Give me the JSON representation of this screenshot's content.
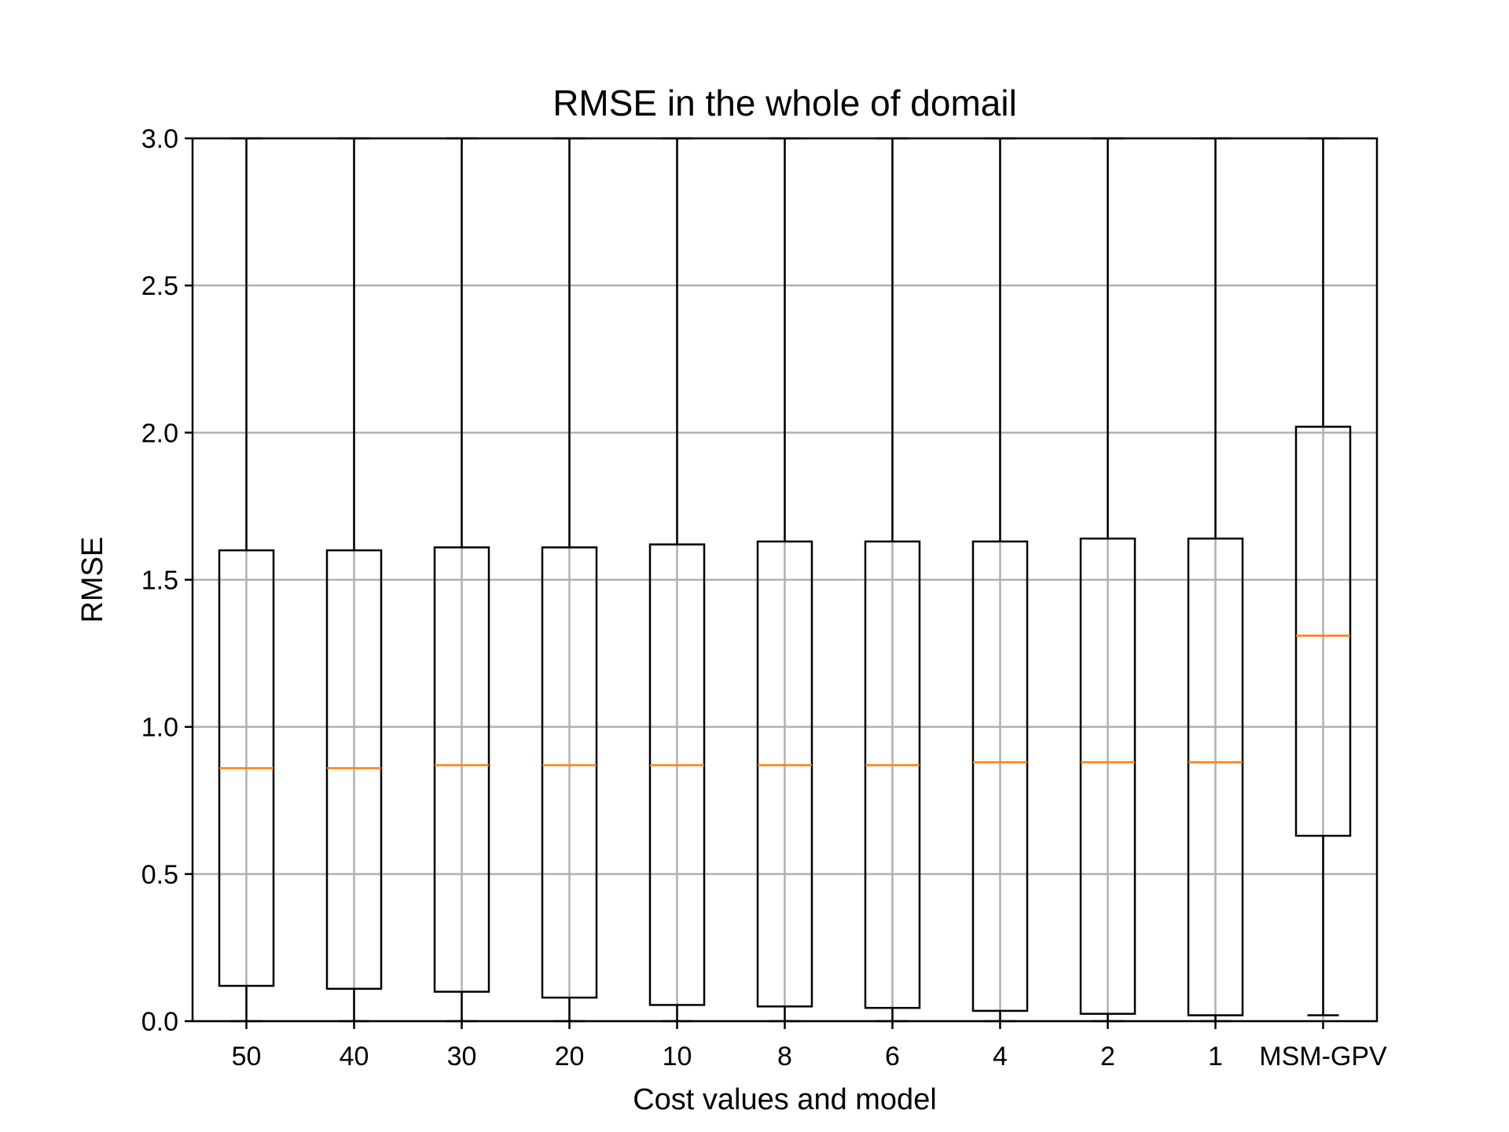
{
  "chart_data": {
    "type": "box",
    "title": "RMSE in the whole of domail",
    "xlabel": "Cost values and model",
    "ylabel": "RMSE",
    "ylim": [
      0.0,
      3.0
    ],
    "yticks": [
      "0.0",
      "0.5",
      "1.0",
      "1.5",
      "2.0",
      "2.5",
      "3.0"
    ],
    "grid": true,
    "categories": [
      "50",
      "40",
      "30",
      "20",
      "10",
      "8",
      "6",
      "4",
      "2",
      "1",
      "MSM-GPV"
    ],
    "boxes": [
      {
        "label": "50",
        "whisker_low": 0.0,
        "q1": 0.12,
        "median": 0.86,
        "q3": 1.6,
        "whisker_high": 3.0
      },
      {
        "label": "40",
        "whisker_low": 0.0,
        "q1": 0.11,
        "median": 0.86,
        "q3": 1.6,
        "whisker_high": 3.0
      },
      {
        "label": "30",
        "whisker_low": 0.0,
        "q1": 0.1,
        "median": 0.87,
        "q3": 1.61,
        "whisker_high": 3.0
      },
      {
        "label": "20",
        "whisker_low": 0.0,
        "q1": 0.08,
        "median": 0.87,
        "q3": 1.61,
        "whisker_high": 3.0
      },
      {
        "label": "10",
        "whisker_low": 0.0,
        "q1": 0.055,
        "median": 0.87,
        "q3": 1.62,
        "whisker_high": 3.0
      },
      {
        "label": "8",
        "whisker_low": 0.0,
        "q1": 0.05,
        "median": 0.87,
        "q3": 1.63,
        "whisker_high": 3.0
      },
      {
        "label": "6",
        "whisker_low": 0.0,
        "q1": 0.045,
        "median": 0.87,
        "q3": 1.63,
        "whisker_high": 3.0
      },
      {
        "label": "4",
        "whisker_low": 0.0,
        "q1": 0.035,
        "median": 0.88,
        "q3": 1.63,
        "whisker_high": 3.0
      },
      {
        "label": "2",
        "whisker_low": 0.0,
        "q1": 0.025,
        "median": 0.88,
        "q3": 1.64,
        "whisker_high": 3.0
      },
      {
        "label": "1",
        "whisker_low": 0.0,
        "q1": 0.02,
        "median": 0.88,
        "q3": 1.64,
        "whisker_high": 3.0
      },
      {
        "label": "MSM-GPV",
        "whisker_low": 0.02,
        "q1": 0.63,
        "median": 1.31,
        "q3": 2.02,
        "whisker_high": 3.0
      }
    ],
    "colors": {
      "box": "#000000",
      "median": "#ff7f0e",
      "grid": "#b0b0b0"
    }
  }
}
